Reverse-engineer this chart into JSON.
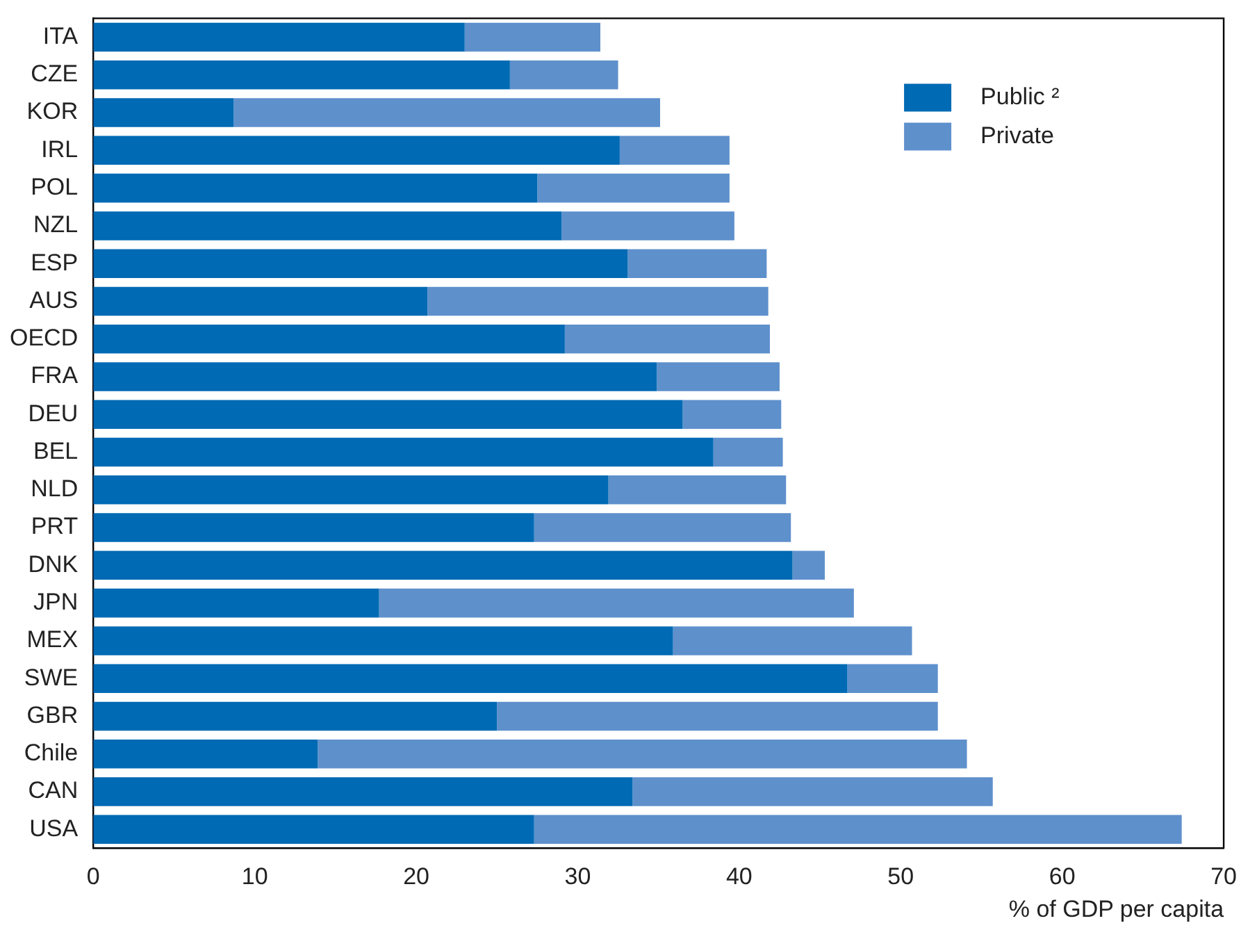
{
  "chart_data": {
    "type": "bar",
    "orientation": "horizontal",
    "stacked": true,
    "xlabel": "% of GDP per capita",
    "categories": [
      "ITA",
      "CZE",
      "KOR",
      "IRL",
      "POL",
      "NZL",
      "ESP",
      "AUS",
      "OECD",
      "FRA",
      "DEU",
      "BEL",
      "NLD",
      "PRT",
      "DNK",
      "JPN",
      "MEX",
      "SWE",
      "GBR",
      "Chile",
      "CAN",
      "USA"
    ],
    "series": [
      {
        "name": "Public ²",
        "color": "#006ab4",
        "values": [
          23.0,
          25.8,
          8.7,
          32.6,
          27.5,
          29.0,
          33.1,
          20.7,
          29.2,
          34.9,
          36.5,
          38.4,
          31.9,
          27.3,
          43.3,
          17.7,
          35.9,
          46.7,
          25.0,
          13.9,
          33.4,
          27.3
        ]
      },
      {
        "name": "Private",
        "color": "#5e90cc",
        "values": [
          8.4,
          6.7,
          26.4,
          6.8,
          11.9,
          10.7,
          8.6,
          21.1,
          12.7,
          7.6,
          6.1,
          4.3,
          11.0,
          15.9,
          2.0,
          29.4,
          14.8,
          5.6,
          27.3,
          40.2,
          22.3,
          40.1
        ]
      }
    ],
    "xlim": [
      0,
      70
    ],
    "xticks": [
      0,
      10,
      20,
      30,
      40,
      50,
      60,
      70
    ],
    "grid": false,
    "legend": "top right"
  }
}
